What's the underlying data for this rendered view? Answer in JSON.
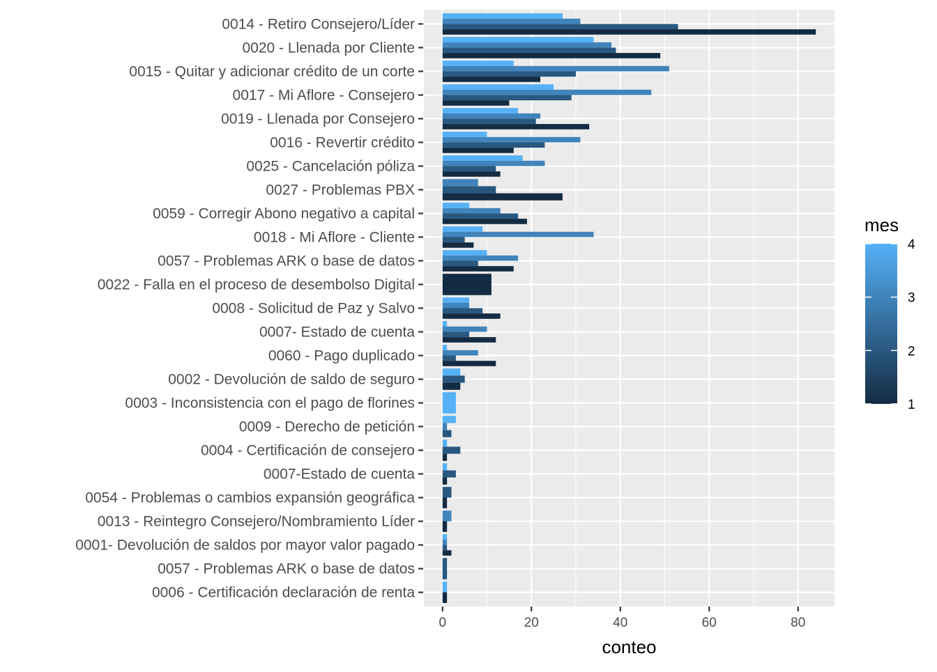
{
  "chart_data": {
    "type": "bar",
    "orientation": "horizontal",
    "title": "",
    "xlabel": "conteo",
    "ylabel": "",
    "xlim": [
      -4.2,
      88.2
    ],
    "x_ticks": [
      0,
      20,
      40,
      60,
      80
    ],
    "grid": true,
    "legend": {
      "title": "mes",
      "type": "continuous",
      "placement": "right",
      "range": [
        1,
        4
      ],
      "ticks": [
        1,
        2,
        3,
        4
      ],
      "colors": [
        "#132B43",
        "#56B1F7"
      ]
    },
    "categories": [
      {
        "label": "0014 - Retiro Consejero/Líder",
        "bars": [
          {
            "mes": 4,
            "value": 27
          },
          {
            "mes": 3,
            "value": 31
          },
          {
            "mes": 2,
            "value": 53
          },
          {
            "mes": 1,
            "value": 84
          }
        ]
      },
      {
        "label": "0020 - Llenada por Cliente",
        "bars": [
          {
            "mes": 4,
            "value": 34
          },
          {
            "mes": 3,
            "value": 38
          },
          {
            "mes": 2,
            "value": 39
          },
          {
            "mes": 1,
            "value": 49
          }
        ]
      },
      {
        "label": "0015 - Quitar y adicionar crédito de un corte",
        "bars": [
          {
            "mes": 4,
            "value": 16
          },
          {
            "mes": 3,
            "value": 51
          },
          {
            "mes": 2,
            "value": 30
          },
          {
            "mes": 1,
            "value": 22
          }
        ]
      },
      {
        "label": "0017 - Mi Aflore - Consejero",
        "bars": [
          {
            "mes": 4,
            "value": 25
          },
          {
            "mes": 3,
            "value": 47
          },
          {
            "mes": 2,
            "value": 29
          },
          {
            "mes": 1,
            "value": 15
          }
        ]
      },
      {
        "label": "0019 - Llenada por Consejero",
        "bars": [
          {
            "mes": 4,
            "value": 17
          },
          {
            "mes": 3,
            "value": 22
          },
          {
            "mes": 2,
            "value": 21
          },
          {
            "mes": 1,
            "value": 33
          }
        ]
      },
      {
        "label": "0016 - Revertir crédito",
        "bars": [
          {
            "mes": 4,
            "value": 10
          },
          {
            "mes": 3,
            "value": 31
          },
          {
            "mes": 2,
            "value": 23
          },
          {
            "mes": 1,
            "value": 16
          }
        ]
      },
      {
        "label": "0025 - Cancelación póliza",
        "bars": [
          {
            "mes": 4,
            "value": 18
          },
          {
            "mes": 3,
            "value": 23
          },
          {
            "mes": 2,
            "value": 12
          },
          {
            "mes": 1,
            "value": 13
          }
        ]
      },
      {
        "label": "0027 - Problemas PBX",
        "bars": [
          {
            "mes": 3,
            "value": 8
          },
          {
            "mes": 2,
            "value": 12
          },
          {
            "mes": 1,
            "value": 27
          }
        ]
      },
      {
        "label": "0059 - Corregir Abono negativo a capital",
        "bars": [
          {
            "mes": 4,
            "value": 6
          },
          {
            "mes": 3,
            "value": 13
          },
          {
            "mes": 2,
            "value": 17
          },
          {
            "mes": 1,
            "value": 19
          }
        ]
      },
      {
        "label": "0018 - Mi Aflore - Cliente",
        "bars": [
          {
            "mes": 4,
            "value": 9
          },
          {
            "mes": 3,
            "value": 34
          },
          {
            "mes": 2,
            "value": 5
          },
          {
            "mes": 1,
            "value": 7
          }
        ]
      },
      {
        "label": "0057  - Problemas ARK o base de datos",
        "bars": [
          {
            "mes": 4,
            "value": 10
          },
          {
            "mes": 3,
            "value": 17
          },
          {
            "mes": 2,
            "value": 8
          },
          {
            "mes": 1,
            "value": 16
          }
        ]
      },
      {
        "label": "0022 - Falla en el proceso de desembolso Digital",
        "bars": [
          {
            "mes": 1,
            "value": 11
          }
        ]
      },
      {
        "label": "0008 - Solicitud de Paz y Salvo",
        "bars": [
          {
            "mes": 4,
            "value": 6
          },
          {
            "mes": 3,
            "value": 6
          },
          {
            "mes": 2,
            "value": 9
          },
          {
            "mes": 1,
            "value": 13
          }
        ]
      },
      {
        "label": "0007- Estado de cuenta",
        "bars": [
          {
            "mes": 4,
            "value": 1
          },
          {
            "mes": 3,
            "value": 10
          },
          {
            "mes": 2,
            "value": 6
          },
          {
            "mes": 1,
            "value": 12
          }
        ]
      },
      {
        "label": "0060 - Pago duplicado",
        "bars": [
          {
            "mes": 4,
            "value": 1
          },
          {
            "mes": 3,
            "value": 8
          },
          {
            "mes": 2,
            "value": 3
          },
          {
            "mes": 1,
            "value": 12
          }
        ]
      },
      {
        "label": "0002 - Devolución de saldo de seguro",
        "bars": [
          {
            "mes": 4,
            "value": 4
          },
          {
            "mes": 2,
            "value": 5
          },
          {
            "mes": 1,
            "value": 4
          }
        ]
      },
      {
        "label": "0003 - Inconsistencia con el pago de florines",
        "bars": [
          {
            "mes": 4,
            "value": 3
          }
        ]
      },
      {
        "label": "0009 - Derecho de petición",
        "bars": [
          {
            "mes": 4,
            "value": 3
          },
          {
            "mes": 3,
            "value": 1
          },
          {
            "mes": 2,
            "value": 2
          }
        ]
      },
      {
        "label": "0004 - Certificación de consejero",
        "bars": [
          {
            "mes": 4,
            "value": 1
          },
          {
            "mes": 2,
            "value": 4
          },
          {
            "mes": 1,
            "value": 1
          }
        ]
      },
      {
        "label": "0007-Estado de cuenta",
        "bars": [
          {
            "mes": 4,
            "value": 1
          },
          {
            "mes": 2,
            "value": 3
          },
          {
            "mes": 1,
            "value": 1
          }
        ]
      },
      {
        "label": "0054 - Problemas o cambios expansión geográfica",
        "bars": [
          {
            "mes": 2,
            "value": 2
          },
          {
            "mes": 1,
            "value": 1
          }
        ]
      },
      {
        "label": "0013 - Reintegro Consejero/Nombramiento Líder",
        "bars": [
          {
            "mes": 3,
            "value": 2
          },
          {
            "mes": 1,
            "value": 1
          }
        ]
      },
      {
        "label": "0001- Devolución de saldos por mayor valor pagado",
        "bars": [
          {
            "mes": 4,
            "value": 1
          },
          {
            "mes": 3,
            "value": 1
          },
          {
            "mes": 2,
            "value": 1
          },
          {
            "mes": 1,
            "value": 2
          }
        ]
      },
      {
        "label": "0057 - Problemas ARK o base de datos",
        "bars": [
          {
            "mes": 2,
            "value": 1
          }
        ]
      },
      {
        "label": "0006 - Certificación declaración de renta",
        "bars": [
          {
            "mes": 4,
            "value": 1
          },
          {
            "mes": 1,
            "value": 1
          }
        ]
      }
    ]
  }
}
